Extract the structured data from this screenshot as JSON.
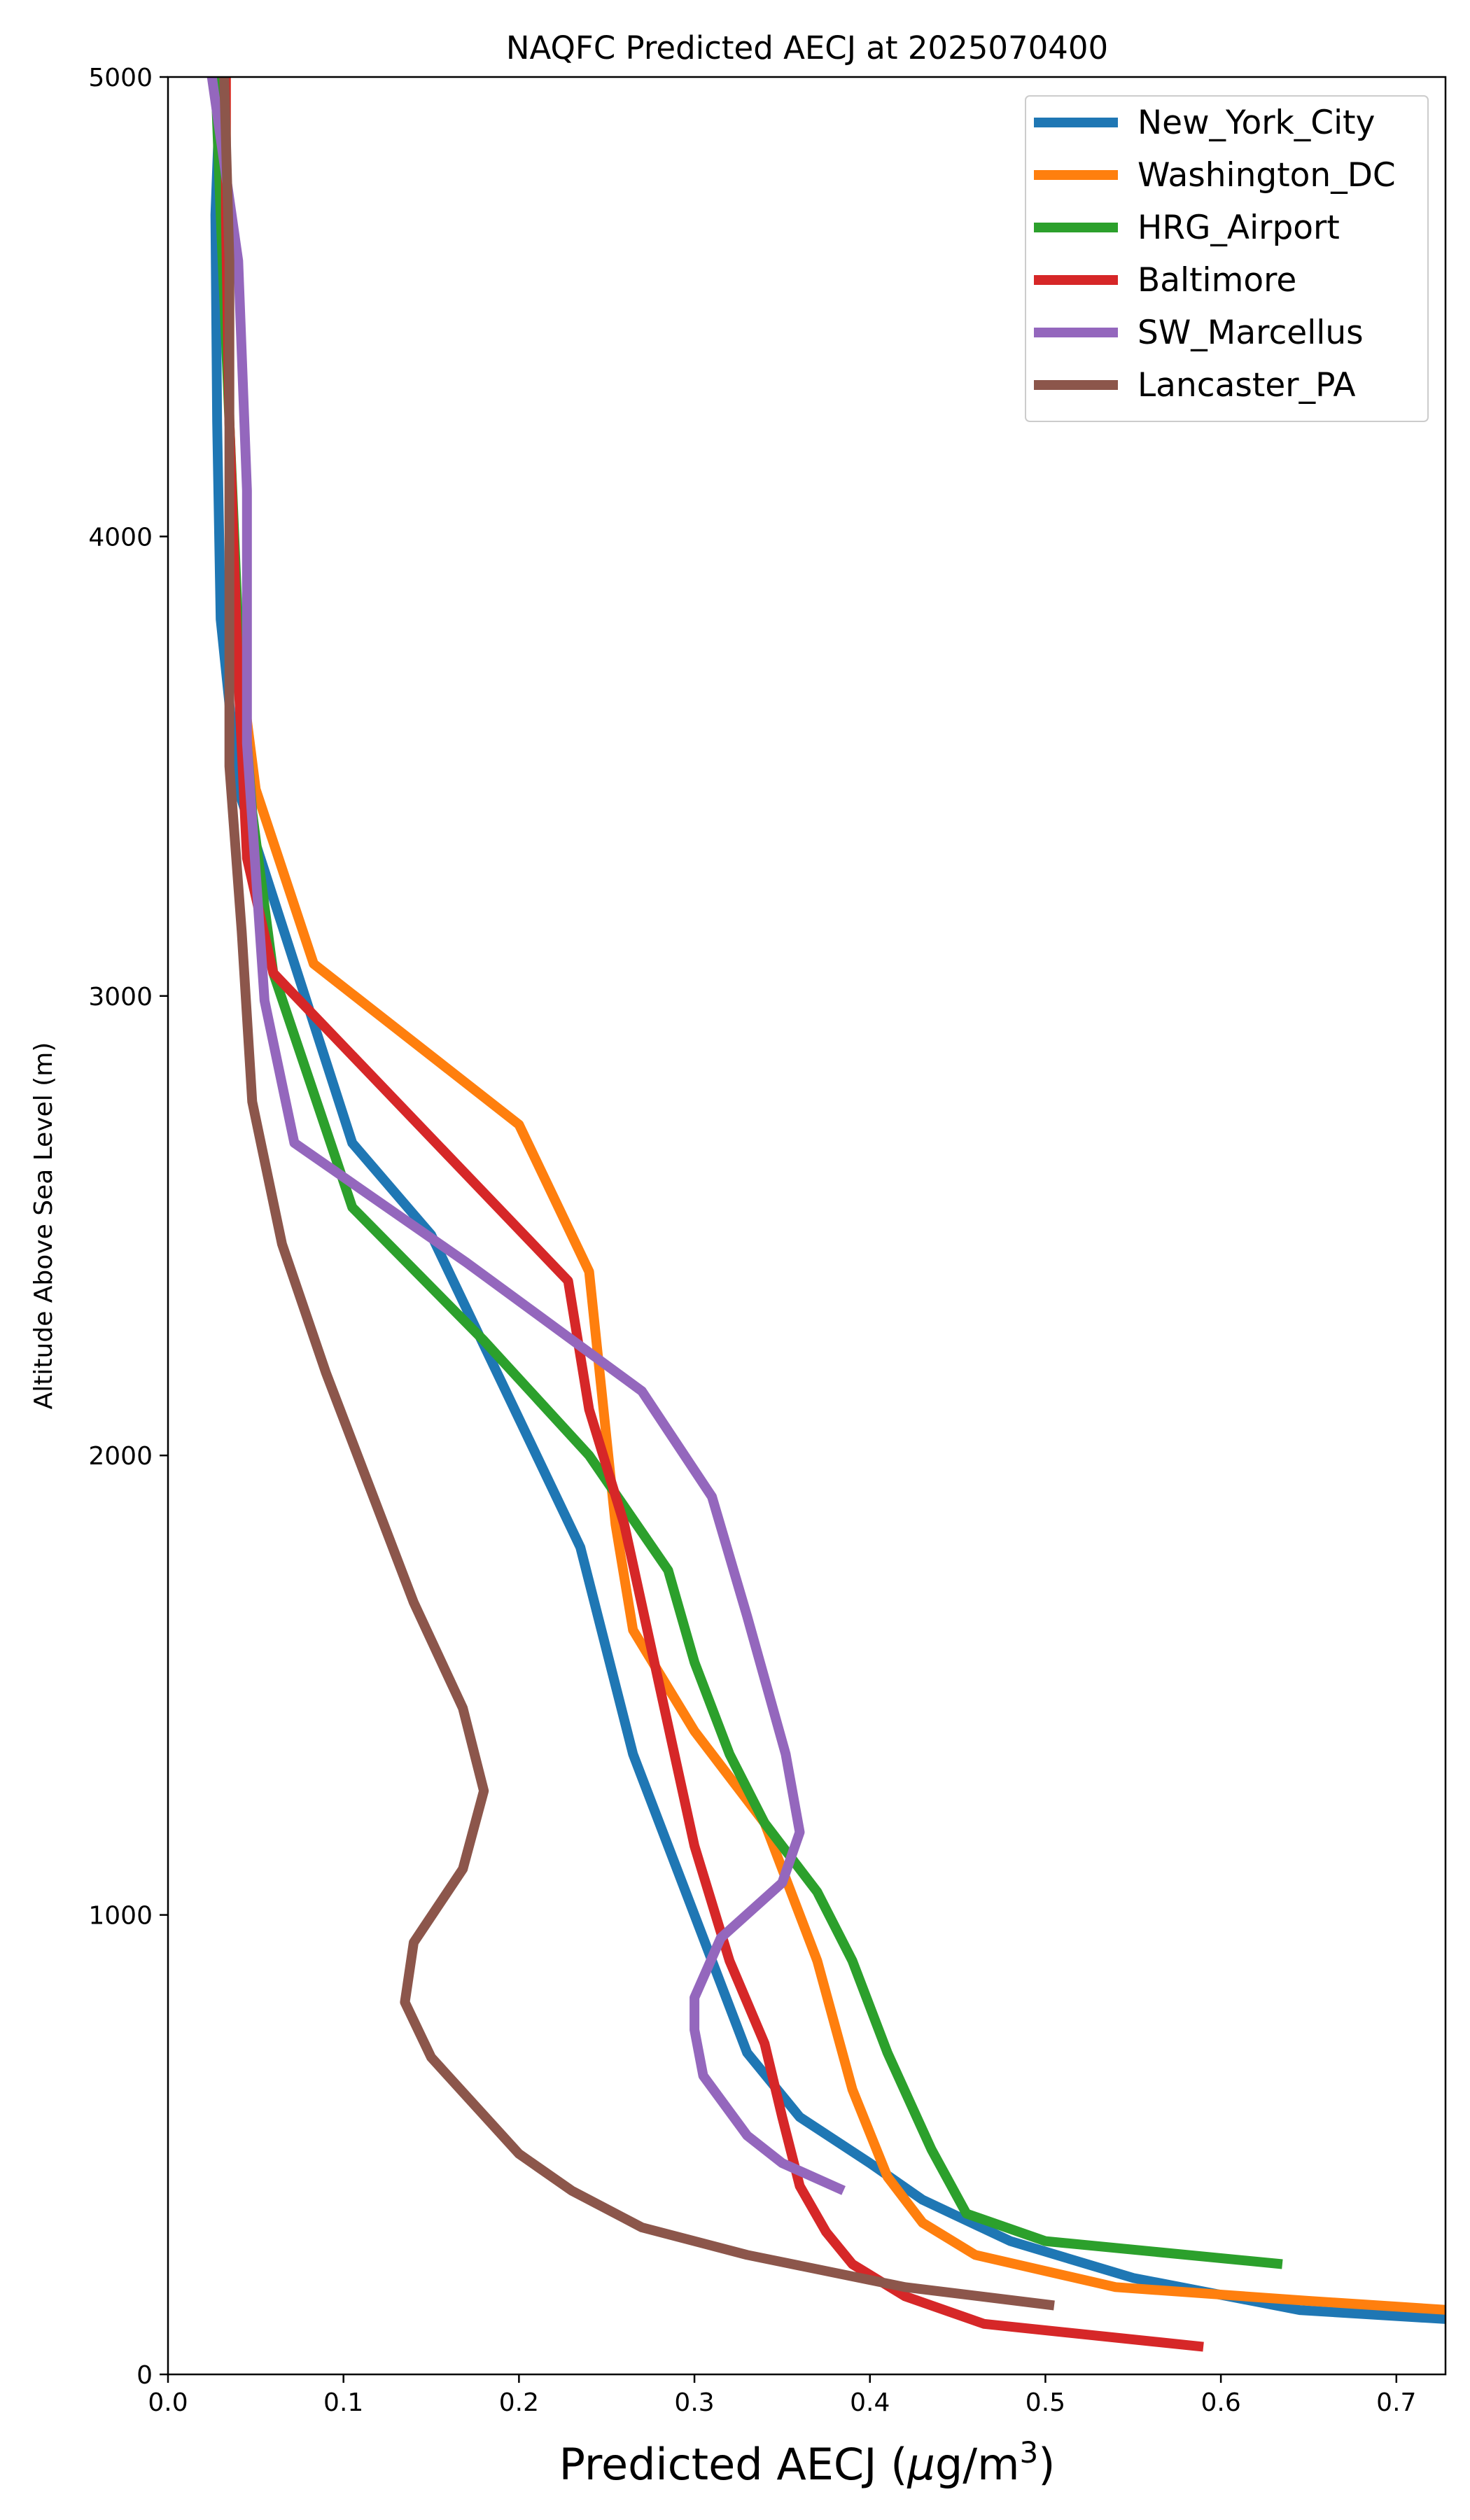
{
  "chart_data": {
    "type": "line",
    "title": "NAQFC Predicted AECJ at 2025070400",
    "xlabel_prefix": "Predicted AECJ (",
    "xlabel_mu": "μ",
    "xlabel_unit": "g/m",
    "xlabel_sup": "3",
    "xlabel_suffix": ")",
    "ylabel": "Altitude Above Sea Level (m)",
    "xlim": [
      0.0,
      0.728
    ],
    "ylim": [
      0,
      5000
    ],
    "x_ticks": [
      "0.0",
      "0.1",
      "0.2",
      "0.3",
      "0.4",
      "0.5",
      "0.6",
      "0.7"
    ],
    "y_ticks": [
      "0",
      "1000",
      "2000",
      "3000",
      "4000",
      "5000"
    ],
    "grid": false,
    "legend_position": "top-right",
    "series": [
      {
        "name": "New_York_City",
        "color": "#1f77b4",
        "points": [
          [
            0.73,
            120
          ],
          [
            0.645,
            140
          ],
          [
            0.55,
            210
          ],
          [
            0.48,
            290
          ],
          [
            0.43,
            380
          ],
          [
            0.4,
            460
          ],
          [
            0.36,
            560
          ],
          [
            0.33,
            700
          ],
          [
            0.3,
            1000
          ],
          [
            0.265,
            1350
          ],
          [
            0.235,
            1800
          ],
          [
            0.2,
            2080
          ],
          [
            0.15,
            2480
          ],
          [
            0.105,
            2680
          ],
          [
            0.04,
            3450
          ],
          [
            0.03,
            3820
          ],
          [
            0.028,
            4250
          ],
          [
            0.027,
            4700
          ],
          [
            0.03,
            5000
          ]
        ]
      },
      {
        "name": "Washington_DC",
        "color": "#ff7f0e",
        "points": [
          [
            0.73,
            140
          ],
          [
            0.65,
            160
          ],
          [
            0.54,
            190
          ],
          [
            0.46,
            260
          ],
          [
            0.43,
            330
          ],
          [
            0.41,
            430
          ],
          [
            0.39,
            620
          ],
          [
            0.37,
            900
          ],
          [
            0.34,
            1200
          ],
          [
            0.3,
            1400
          ],
          [
            0.265,
            1620
          ],
          [
            0.255,
            1850
          ],
          [
            0.24,
            2400
          ],
          [
            0.2,
            2720
          ],
          [
            0.083,
            3070
          ],
          [
            0.05,
            3450
          ],
          [
            0.04,
            3750
          ],
          [
            0.035,
            4250
          ],
          [
            0.033,
            4700
          ],
          [
            0.033,
            5000
          ]
        ]
      },
      {
        "name": "HRG_Airport",
        "color": "#2ca02c",
        "points": [
          [
            0.635,
            240
          ],
          [
            0.5,
            290
          ],
          [
            0.455,
            350
          ],
          [
            0.435,
            490
          ],
          [
            0.41,
            700
          ],
          [
            0.39,
            900
          ],
          [
            0.37,
            1050
          ],
          [
            0.34,
            1200
          ],
          [
            0.32,
            1350
          ],
          [
            0.3,
            1550
          ],
          [
            0.285,
            1750
          ],
          [
            0.24,
            2000
          ],
          [
            0.18,
            2250
          ],
          [
            0.105,
            2540
          ],
          [
            0.06,
            3050
          ],
          [
            0.048,
            3400
          ],
          [
            0.04,
            3800
          ],
          [
            0.035,
            4250
          ],
          [
            0.03,
            4700
          ],
          [
            0.027,
            5000
          ]
        ]
      },
      {
        "name": "Baltimore",
        "color": "#d62728",
        "points": [
          [
            0.59,
            60
          ],
          [
            0.465,
            110
          ],
          [
            0.42,
            170
          ],
          [
            0.39,
            240
          ],
          [
            0.375,
            310
          ],
          [
            0.36,
            410
          ],
          [
            0.35,
            560
          ],
          [
            0.34,
            720
          ],
          [
            0.32,
            900
          ],
          [
            0.3,
            1150
          ],
          [
            0.28,
            1500
          ],
          [
            0.26,
            1850
          ],
          [
            0.24,
            2100
          ],
          [
            0.228,
            2380
          ],
          [
            0.06,
            3050
          ],
          [
            0.045,
            3300
          ],
          [
            0.04,
            3700
          ],
          [
            0.035,
            4250
          ],
          [
            0.033,
            4700
          ],
          [
            0.033,
            5000
          ]
        ]
      },
      {
        "name": "SW_Marcellus",
        "color": "#9467bd",
        "points": [
          [
            0.385,
            400
          ],
          [
            0.35,
            460
          ],
          [
            0.33,
            520
          ],
          [
            0.305,
            650
          ],
          [
            0.3,
            750
          ],
          [
            0.3,
            820
          ],
          [
            0.315,
            950
          ],
          [
            0.35,
            1070
          ],
          [
            0.36,
            1180
          ],
          [
            0.352,
            1350
          ],
          [
            0.33,
            1650
          ],
          [
            0.31,
            1910
          ],
          [
            0.27,
            2140
          ],
          [
            0.17,
            2420
          ],
          [
            0.072,
            2680
          ],
          [
            0.055,
            2990
          ],
          [
            0.045,
            3550
          ],
          [
            0.045,
            4100
          ],
          [
            0.04,
            4600
          ],
          [
            0.025,
            5000
          ]
        ]
      },
      {
        "name": "Lancaster_PA",
        "color": "#8c564b",
        "points": [
          [
            0.505,
            150
          ],
          [
            0.42,
            190
          ],
          [
            0.33,
            260
          ],
          [
            0.27,
            320
          ],
          [
            0.23,
            400
          ],
          [
            0.2,
            480
          ],
          [
            0.15,
            690
          ],
          [
            0.135,
            810
          ],
          [
            0.14,
            940
          ],
          [
            0.168,
            1100
          ],
          [
            0.18,
            1270
          ],
          [
            0.168,
            1450
          ],
          [
            0.14,
            1680
          ],
          [
            0.09,
            2180
          ],
          [
            0.065,
            2460
          ],
          [
            0.048,
            2770
          ],
          [
            0.042,
            3140
          ],
          [
            0.035,
            3500
          ],
          [
            0.035,
            4000
          ],
          [
            0.035,
            4600
          ],
          [
            0.032,
            5000
          ]
        ]
      }
    ]
  }
}
